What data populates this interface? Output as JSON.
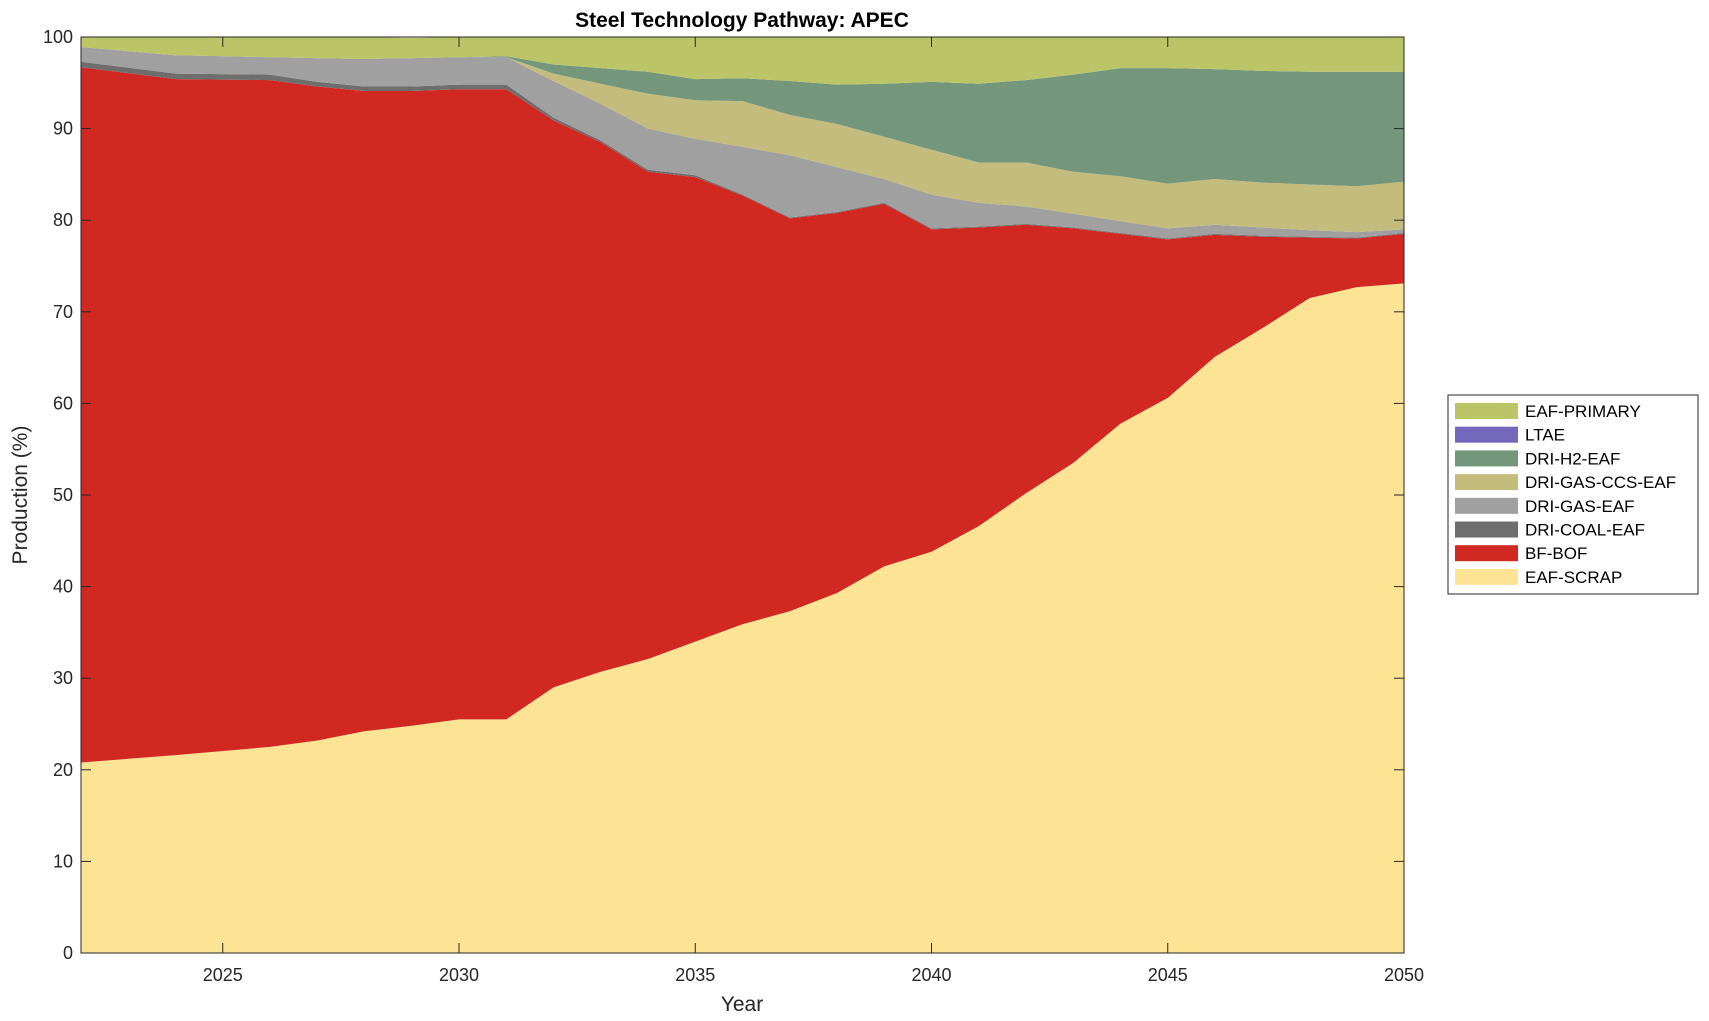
{
  "chart_data": {
    "type": "area",
    "stacked": true,
    "title": "Steel Technology Pathway: APEC",
    "xlabel": "Year",
    "ylabel": "Production (%)",
    "xlim": [
      2022,
      2050
    ],
    "ylim": [
      0,
      100
    ],
    "xticks": [
      2025,
      2030,
      2035,
      2040,
      2045,
      2050
    ],
    "yticks": [
      0,
      10,
      20,
      30,
      40,
      50,
      60,
      70,
      80,
      90,
      100
    ],
    "grid": false,
    "legend_position": "right",
    "x": [
      2022,
      2024,
      2026,
      2027,
      2028,
      2029,
      2030,
      2031,
      2032,
      2033,
      2034,
      2035,
      2036,
      2037,
      2038,
      2039,
      2040,
      2041,
      2042,
      2043,
      2044,
      2045,
      2046,
      2047,
      2048,
      2049,
      2050
    ],
    "series": [
      {
        "name": "EAF-SCRAP",
        "color": "#FDE394",
        "values": [
          20.8,
          21.6,
          22.5,
          23.2,
          24.2,
          24.8,
          25.5,
          25.5,
          29.0,
          30.7,
          32.1,
          34.0,
          35.9,
          37.3,
          39.3,
          42.2,
          43.8,
          46.6,
          50.2,
          53.5,
          57.8,
          60.6,
          65.1,
          68.2,
          71.5,
          72.7,
          73.1
        ]
      },
      {
        "name": "BF-BOF",
        "color": "#D22822",
        "values": [
          75.9,
          73.8,
          72.8,
          71.4,
          69.9,
          69.3,
          68.8,
          68.8,
          61.9,
          57.8,
          53.2,
          50.7,
          46.8,
          42.9,
          41.5,
          39.6,
          35.2,
          32.6,
          29.3,
          25.6,
          20.7,
          17.3,
          13.3,
          10.0,
          6.6,
          5.3,
          5.4
        ]
      },
      {
        "name": "DRI-COAL-EAF",
        "color": "#6E6E6E",
        "values": [
          0.6,
          0.6,
          0.6,
          0.5,
          0.5,
          0.5,
          0.5,
          0.5,
          0.3,
          0.2,
          0.2,
          0.2,
          0.1,
          0.1,
          0.1,
          0.1,
          0.1,
          0.1,
          0.1,
          0.1,
          0.1,
          0.1,
          0.1,
          0.1,
          0.1,
          0.1,
          0.1
        ]
      },
      {
        "name": "DRI-GAS-EAF",
        "color": "#A0A0A0",
        "values": [
          1.6,
          2.0,
          1.9,
          2.6,
          3.0,
          3.1,
          3.0,
          3.0,
          4.0,
          4.0,
          4.5,
          4.0,
          5.2,
          6.8,
          4.9,
          2.6,
          3.7,
          2.6,
          1.9,
          1.5,
          1.3,
          1.1,
          1.0,
          0.9,
          0.7,
          0.6,
          0.4
        ]
      },
      {
        "name": "DRI-GAS-CCS-EAF",
        "color": "#C4BC7C",
        "values": [
          0.0,
          0.0,
          0.0,
          0.0,
          0.0,
          0.0,
          0.0,
          0.0,
          0.8,
          2.2,
          3.8,
          4.2,
          5.0,
          4.4,
          4.7,
          4.6,
          4.9,
          4.4,
          4.8,
          4.6,
          4.9,
          4.9,
          5.0,
          4.9,
          5.0,
          5.0,
          5.2
        ]
      },
      {
        "name": "DRI-H2-EAF",
        "color": "#74977C",
        "values": [
          0.0,
          0.0,
          0.0,
          0.0,
          0.0,
          0.0,
          0.0,
          0.1,
          1.0,
          1.7,
          2.4,
          2.3,
          2.5,
          3.7,
          4.3,
          5.8,
          7.4,
          8.6,
          9.0,
          10.6,
          11.8,
          12.6,
          12.0,
          12.2,
          12.3,
          12.5,
          12.0
        ]
      },
      {
        "name": "LTAE",
        "color": "#7468BC",
        "values": [
          0.0,
          0.0,
          0.0,
          0.0,
          0.0,
          0.0,
          0.0,
          0.0,
          0.0,
          0.0,
          0.0,
          0.0,
          0.0,
          0.0,
          0.0,
          0.0,
          0.0,
          0.0,
          0.0,
          0.0,
          0.0,
          0.0,
          0.0,
          0.0,
          0.0,
          0.0,
          0.0
        ]
      },
      {
        "name": "EAF-PRIMARY",
        "color": "#BCC468",
        "values": [
          1.1,
          2.0,
          2.2,
          2.3,
          2.4,
          2.2,
          2.2,
          2.1,
          3.0,
          3.4,
          3.8,
          4.6,
          4.5,
          4.8,
          5.2,
          5.1,
          4.9,
          5.1,
          4.7,
          4.1,
          3.4,
          3.4,
          3.5,
          3.7,
          3.8,
          3.8,
          3.8
        ]
      }
    ],
    "legend_order": [
      "EAF-PRIMARY",
      "LTAE",
      "DRI-H2-EAF",
      "DRI-GAS-CCS-EAF",
      "DRI-GAS-EAF",
      "DRI-COAL-EAF",
      "BF-BOF",
      "EAF-SCRAP"
    ]
  }
}
